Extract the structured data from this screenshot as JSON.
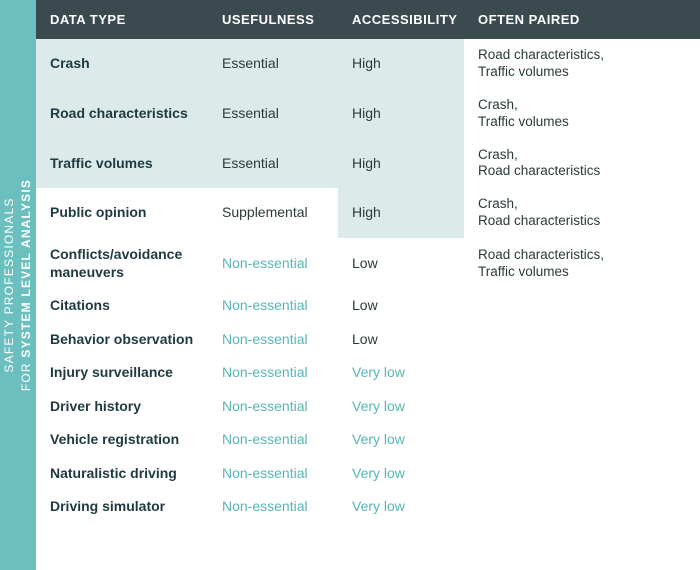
{
  "sidebar": {
    "line1": "SAFETY PROFESSIONALS",
    "line2_prefix": "FOR ",
    "line2_bold": "SYSTEM LEVEL ANALYSIS",
    "bg": "#6cbfbf",
    "text_color": "#ffffff"
  },
  "header": {
    "bg": "#3a4a4f",
    "text_color": "#ffffff",
    "columns": [
      "DATA TYPE",
      "USEFULNESS",
      "ACCESSIBILITY",
      "OFTEN PAIRED"
    ]
  },
  "palette": {
    "shade_bg": "#dceaea",
    "plain_bg": "#ffffff",
    "dark_text": "#2b3a3a",
    "teal_text": "#57b5b5",
    "datatype_text": "#1e3a40"
  },
  "value_styles": {
    "Essential": {
      "class": "val-essential",
      "color": "#2b3a3a"
    },
    "Supplemental": {
      "class": "val-supplemental",
      "color": "#2b3a3a"
    },
    "Non-essential": {
      "class": "val-nonessential",
      "color": "#57b5b5"
    },
    "High": {
      "class": "val-high",
      "color": "#2b3a3a"
    },
    "Low": {
      "class": "val-low",
      "color": "#2b3a3a"
    },
    "Very low": {
      "class": "val-verylow",
      "color": "#57b5b5"
    }
  },
  "rows": [
    {
      "data_type": "Crash",
      "usefulness": "Essential",
      "accessibility": "High",
      "paired": "Road characteristics,\nTraffic volumes",
      "shade": {
        "type": true,
        "use": true,
        "acc": true,
        "pair": false
      }
    },
    {
      "data_type": "Road characteristics",
      "usefulness": "Essential",
      "accessibility": "High",
      "paired": "Crash,\nTraffic volumes",
      "shade": {
        "type": true,
        "use": true,
        "acc": true,
        "pair": false
      }
    },
    {
      "data_type": "Traffic volumes",
      "usefulness": "Essential",
      "accessibility": "High",
      "paired": "Crash,\nRoad characteristics",
      "shade": {
        "type": true,
        "use": true,
        "acc": true,
        "pair": false
      }
    },
    {
      "data_type": "Public opinion",
      "usefulness": "Supplemental",
      "accessibility": "High",
      "paired": "Crash,\nRoad characteristics",
      "shade": {
        "type": false,
        "use": false,
        "acc": true,
        "pair": false
      }
    },
    {
      "data_type": "Conflicts/avoidance maneuvers",
      "usefulness": "Non-essential",
      "accessibility": "Low",
      "paired": "Road characteristics,\nTraffic volumes",
      "shade": {
        "type": false,
        "use": false,
        "acc": false,
        "pair": false
      }
    },
    {
      "data_type": "Citations",
      "usefulness": "Non-essential",
      "accessibility": "Low",
      "paired": "",
      "shade": {
        "type": false,
        "use": false,
        "acc": false,
        "pair": false
      }
    },
    {
      "data_type": "Behavior observation",
      "usefulness": "Non-essential",
      "accessibility": "Low",
      "paired": "",
      "shade": {
        "type": false,
        "use": false,
        "acc": false,
        "pair": false
      }
    },
    {
      "data_type": "Injury surveillance",
      "usefulness": "Non-essential",
      "accessibility": "Very low",
      "paired": "",
      "shade": {
        "type": false,
        "use": false,
        "acc": false,
        "pair": false
      }
    },
    {
      "data_type": "Driver history",
      "usefulness": "Non-essential",
      "accessibility": "Very low",
      "paired": "",
      "shade": {
        "type": false,
        "use": false,
        "acc": false,
        "pair": false
      }
    },
    {
      "data_type": "Vehicle registration",
      "usefulness": "Non-essential",
      "accessibility": "Very low",
      "paired": "",
      "shade": {
        "type": false,
        "use": false,
        "acc": false,
        "pair": false
      }
    },
    {
      "data_type": "Naturalistic driving",
      "usefulness": "Non-essential",
      "accessibility": "Very low",
      "paired": "",
      "shade": {
        "type": false,
        "use": false,
        "acc": false,
        "pair": false
      }
    },
    {
      "data_type": "Driving simulator",
      "usefulness": "Non-essential",
      "accessibility": "Very low",
      "paired": "",
      "shade": {
        "type": false,
        "use": false,
        "acc": false,
        "pair": false
      }
    }
  ]
}
